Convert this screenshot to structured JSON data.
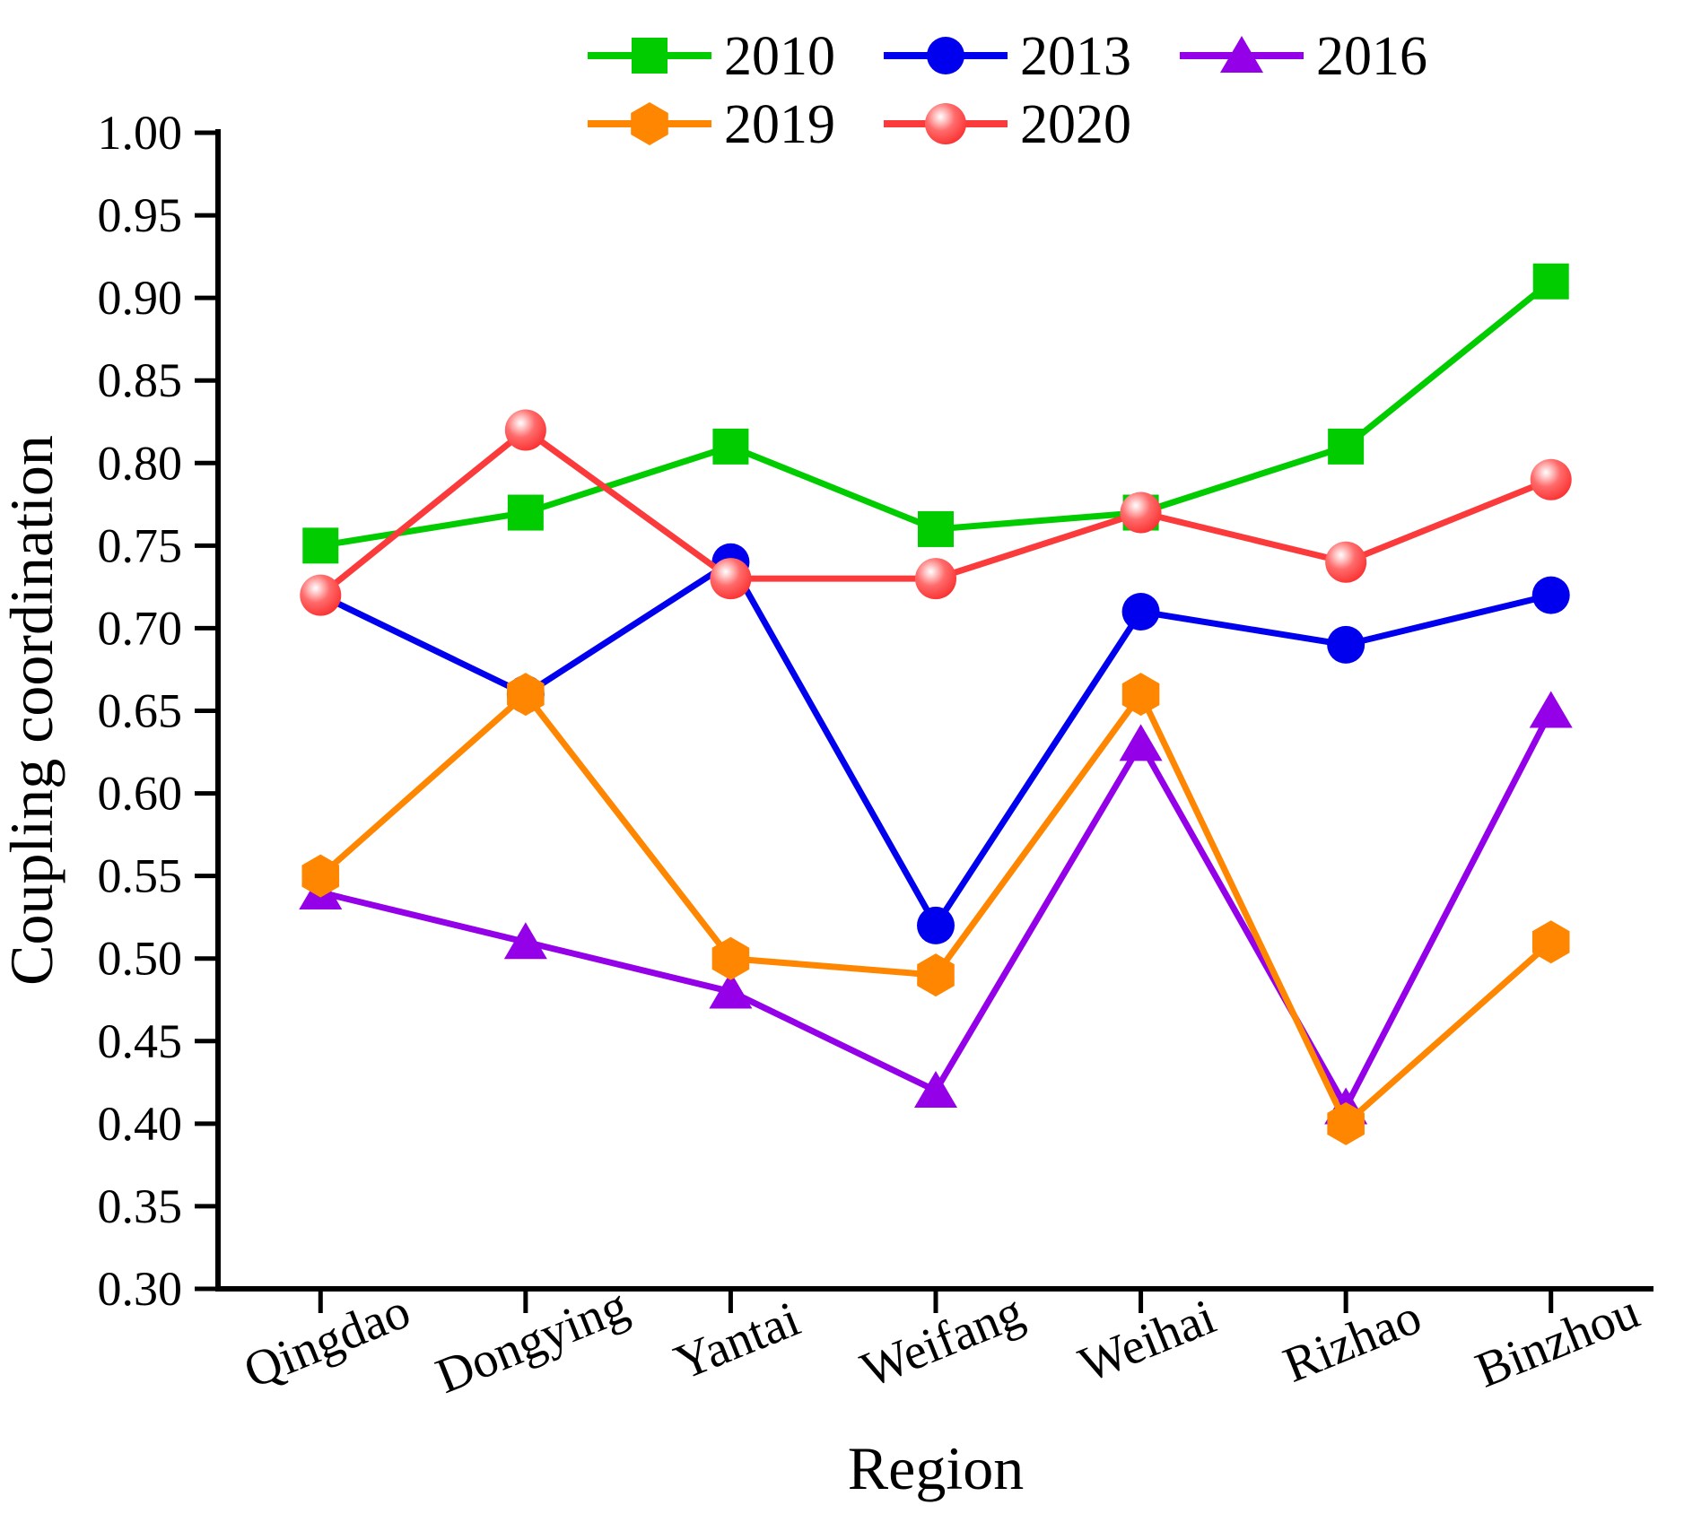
{
  "chart_data": {
    "type": "line",
    "title": "",
    "xlabel": "Region",
    "ylabel": "Coupling coordination",
    "categories": [
      "Qingdao",
      "Dongying",
      "Yantai",
      "Weifang",
      "Weihai",
      "Rizhao",
      "Binzhou"
    ],
    "ylim": [
      0.3,
      1.0
    ],
    "ytick_step": 0.05,
    "grid": false,
    "legend": {
      "position": "top",
      "items_per_row": 3
    },
    "series": [
      {
        "name": "2010",
        "color": "#00cc00",
        "marker": "square",
        "values": [
          0.75,
          0.77,
          0.81,
          0.76,
          0.77,
          0.81,
          0.91
        ]
      },
      {
        "name": "2013",
        "color": "#0000ee",
        "marker": "circle",
        "values": [
          0.72,
          0.66,
          0.74,
          0.52,
          0.71,
          0.69,
          0.72
        ]
      },
      {
        "name": "2016",
        "color": "#9400e8",
        "marker": "triangle",
        "values": [
          0.54,
          0.51,
          0.48,
          0.42,
          0.63,
          0.41,
          0.65
        ]
      },
      {
        "name": "2019",
        "color": "#ff8600",
        "marker": "hexagon",
        "values": [
          0.55,
          0.66,
          0.5,
          0.49,
          0.66,
          0.4,
          0.51
        ]
      },
      {
        "name": "2020",
        "color": "#fb3b3b",
        "marker": "sphere",
        "values": [
          0.72,
          0.82,
          0.73,
          0.73,
          0.77,
          0.74,
          0.79
        ]
      }
    ],
    "axis_color": "#000000",
    "sphere_gradient": [
      "#ffffff",
      "#ffc9c9",
      "#ff6b6b",
      "#fa2f2f"
    ]
  }
}
